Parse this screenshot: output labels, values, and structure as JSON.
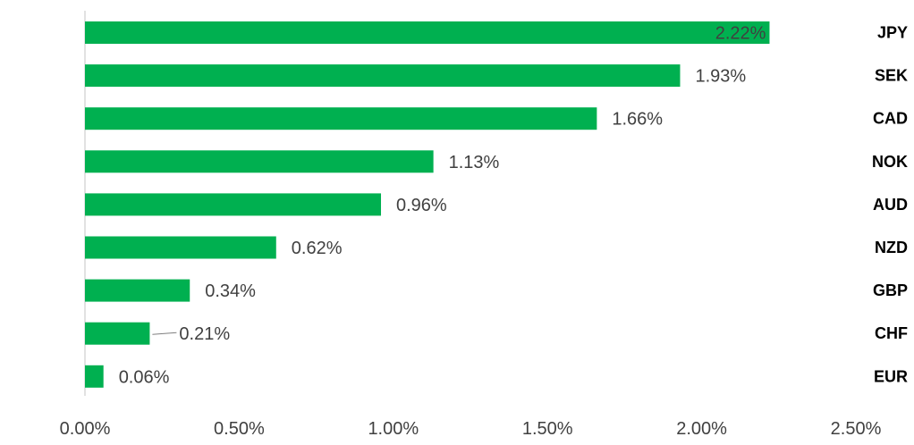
{
  "chart_data": {
    "type": "bar",
    "orientation": "horizontal",
    "categories": [
      "JPY",
      "SEK",
      "CAD",
      "NOK",
      "AUD",
      "NZD",
      "GBP",
      "CHF",
      "EUR"
    ],
    "values": [
      2.22,
      1.93,
      1.66,
      1.13,
      0.96,
      0.62,
      0.34,
      0.21,
      0.06
    ],
    "data_labels": [
      "2.22%",
      "1.93%",
      "1.66%",
      "1.13%",
      "0.96%",
      "0.62%",
      "0.34%",
      "0.21%",
      "0.06%"
    ],
    "xlim": [
      0,
      2.5
    ],
    "x_ticks": [
      0,
      0.5,
      1.0,
      1.5,
      2.0,
      2.5
    ],
    "x_tick_labels": [
      "0.00%",
      "0.50%",
      "1.00%",
      "1.50%",
      "2.00%",
      "2.50%"
    ],
    "bar_color": "#00b050",
    "grid": false,
    "category_label_position": "right",
    "legend": "none"
  }
}
